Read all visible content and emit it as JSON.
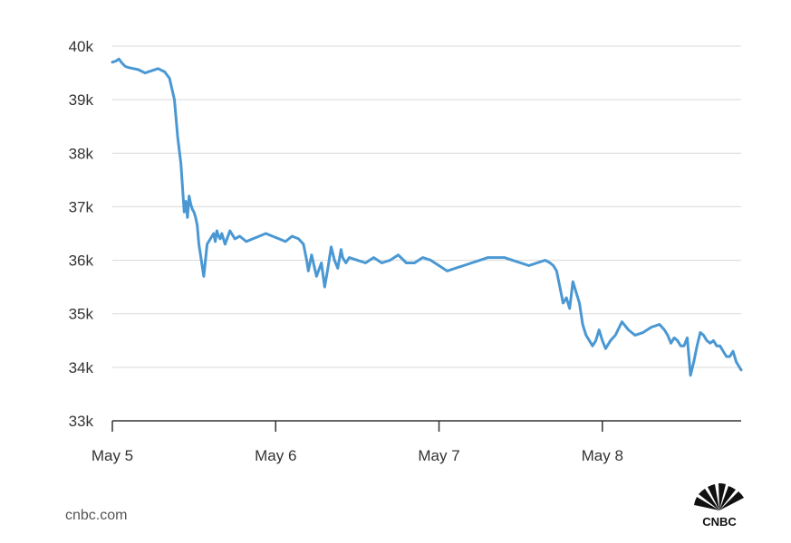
{
  "source_text": "cnbc.com",
  "logo_text": "CNBC",
  "colors": {
    "line": "#4a98d3",
    "grid": "#d9d9d9",
    "axis": "#333333",
    "text": "#333333"
  },
  "chart_data": {
    "type": "line",
    "title": "",
    "xlabel": "",
    "ylabel": "",
    "ylim": [
      33000,
      40000
    ],
    "xlim": [
      0,
      3.85
    ],
    "y_ticks": [
      {
        "value": 33000,
        "label": "33k"
      },
      {
        "value": 34000,
        "label": "34k"
      },
      {
        "value": 35000,
        "label": "35k"
      },
      {
        "value": 36000,
        "label": "36k"
      },
      {
        "value": 37000,
        "label": "37k"
      },
      {
        "value": 38000,
        "label": "38k"
      },
      {
        "value": 39000,
        "label": "39k"
      },
      {
        "value": 40000,
        "label": "40k"
      }
    ],
    "x_ticks": [
      {
        "value": 0,
        "label": "May 5"
      },
      {
        "value": 1,
        "label": "May 6"
      },
      {
        "value": 2,
        "label": "May 7"
      },
      {
        "value": 3,
        "label": "May 8"
      }
    ],
    "grid": true,
    "series": [
      {
        "x": [
          0.0,
          0.02,
          0.04,
          0.06,
          0.08,
          0.1,
          0.13,
          0.16,
          0.2,
          0.24,
          0.28,
          0.32,
          0.35,
          0.38,
          0.4,
          0.42,
          0.44,
          0.45,
          0.46,
          0.47,
          0.48,
          0.49,
          0.5,
          0.51,
          0.52,
          0.53,
          0.54,
          0.55,
          0.56,
          0.58,
          0.6,
          0.62,
          0.63,
          0.64,
          0.65,
          0.66,
          0.67,
          0.69,
          0.72,
          0.75,
          0.78,
          0.82,
          0.86,
          0.9,
          0.94,
          0.98,
          1.02,
          1.06,
          1.1,
          1.14,
          1.17,
          1.19,
          1.2,
          1.22,
          1.25,
          1.28,
          1.3,
          1.32,
          1.34,
          1.36,
          1.38,
          1.4,
          1.41,
          1.43,
          1.45,
          1.5,
          1.55,
          1.6,
          1.65,
          1.7,
          1.75,
          1.8,
          1.85,
          1.9,
          1.95,
          2.0,
          2.05,
          2.1,
          2.15,
          2.2,
          2.25,
          2.3,
          2.35,
          2.4,
          2.45,
          2.5,
          2.55,
          2.6,
          2.65,
          2.68,
          2.7,
          2.72,
          2.74,
          2.76,
          2.78,
          2.8,
          2.82,
          2.84,
          2.86,
          2.88,
          2.9,
          2.92,
          2.94,
          2.96,
          2.98,
          3.0,
          3.02,
          3.05,
          3.08,
          3.12,
          3.16,
          3.2,
          3.25,
          3.3,
          3.35,
          3.38,
          3.4,
          3.42,
          3.44,
          3.46,
          3.48,
          3.5,
          3.52,
          3.54,
          3.56,
          3.58,
          3.6,
          3.62,
          3.64,
          3.66,
          3.68,
          3.7,
          3.72,
          3.74,
          3.76,
          3.78,
          3.8,
          3.82,
          3.84,
          3.85
        ],
        "values": [
          39700,
          39720,
          39760,
          39680,
          39620,
          39600,
          39580,
          39560,
          39500,
          39540,
          39580,
          39520,
          39400,
          39000,
          38300,
          37800,
          36900,
          37100,
          36800,
          37200,
          37050,
          36950,
          36900,
          36800,
          36650,
          36300,
          36100,
          35900,
          35700,
          36300,
          36400,
          36500,
          36350,
          36550,
          36450,
          36400,
          36500,
          36300,
          36550,
          36400,
          36450,
          36350,
          36400,
          36450,
          36500,
          36450,
          36400,
          36350,
          36450,
          36400,
          36300,
          36000,
          35800,
          36100,
          35700,
          35950,
          35500,
          35850,
          36250,
          36000,
          35850,
          36200,
          36050,
          35950,
          36050,
          36000,
          35950,
          36050,
          35950,
          36000,
          36100,
          35950,
          35950,
          36050,
          36000,
          35900,
          35800,
          35850,
          35900,
          35950,
          36000,
          36050,
          36050,
          36050,
          36000,
          35950,
          35900,
          35950,
          36000,
          35950,
          35900,
          35800,
          35500,
          35200,
          35300,
          35100,
          35600,
          35400,
          35200,
          34800,
          34600,
          34500,
          34400,
          34500,
          34700,
          34500,
          34350,
          34500,
          34600,
          34850,
          34700,
          34600,
          34650,
          34750,
          34800,
          34700,
          34600,
          34450,
          34550,
          34500,
          34400,
          34400,
          34550,
          33850,
          34100,
          34400,
          34650,
          34600,
          34500,
          34450,
          34500,
          34400,
          34400,
          34300,
          34200,
          34200,
          34300,
          34100,
          34000,
          33950
        ]
      }
    ]
  }
}
